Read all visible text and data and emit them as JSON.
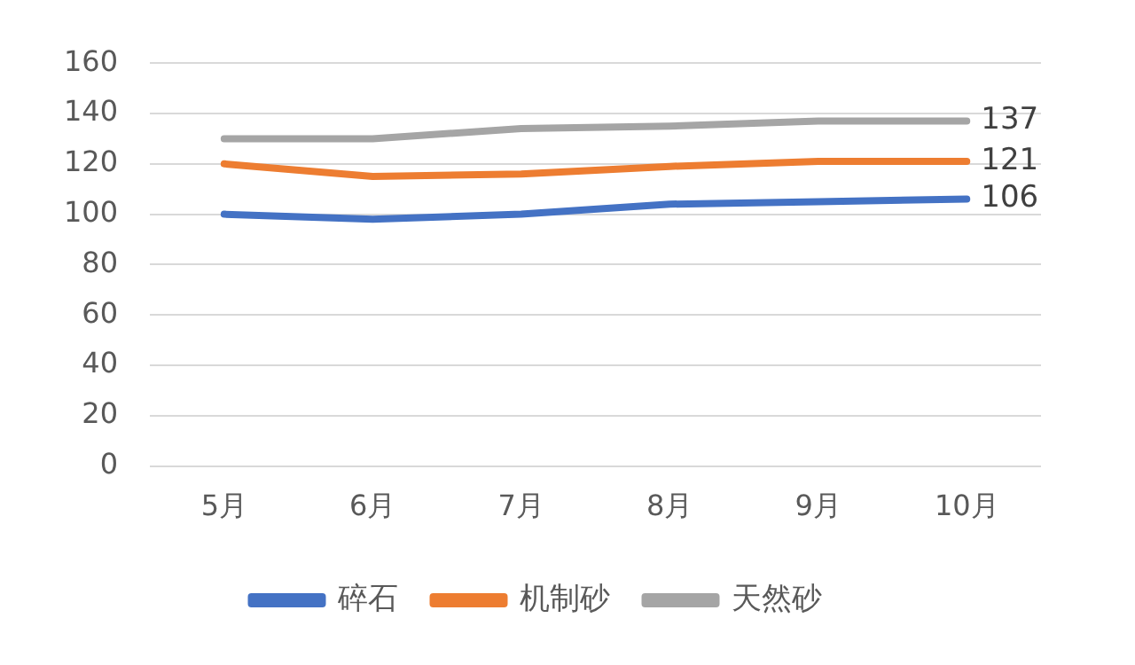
{
  "chart_data": {
    "type": "line",
    "categories": [
      "5月",
      "6月",
      "7月",
      "8月",
      "9月",
      "10月"
    ],
    "series": [
      {
        "name": "碎石",
        "color": "#4472c4",
        "values": [
          100,
          98,
          100,
          104,
          105,
          106
        ],
        "value_labels": [
          null,
          null,
          null,
          null,
          null,
          "106"
        ]
      },
      {
        "name": "机制砂",
        "color": "#ed7d31",
        "values": [
          120,
          115,
          116,
          119,
          121,
          121
        ],
        "value_labels": [
          null,
          null,
          null,
          null,
          null,
          "121"
        ]
      },
      {
        "name": "天然砂",
        "color": "#a5a5a5",
        "values": [
          130,
          130,
          134,
          135,
          137,
          137
        ],
        "value_labels": [
          null,
          null,
          null,
          null,
          null,
          "137"
        ]
      }
    ],
    "ylim": [
      0,
      160
    ],
    "yticks": [
      0,
      20,
      40,
      60,
      80,
      100,
      120,
      140,
      160
    ],
    "grid": "y",
    "legend": "bottom",
    "marker": "none",
    "line_style": "solid"
  }
}
